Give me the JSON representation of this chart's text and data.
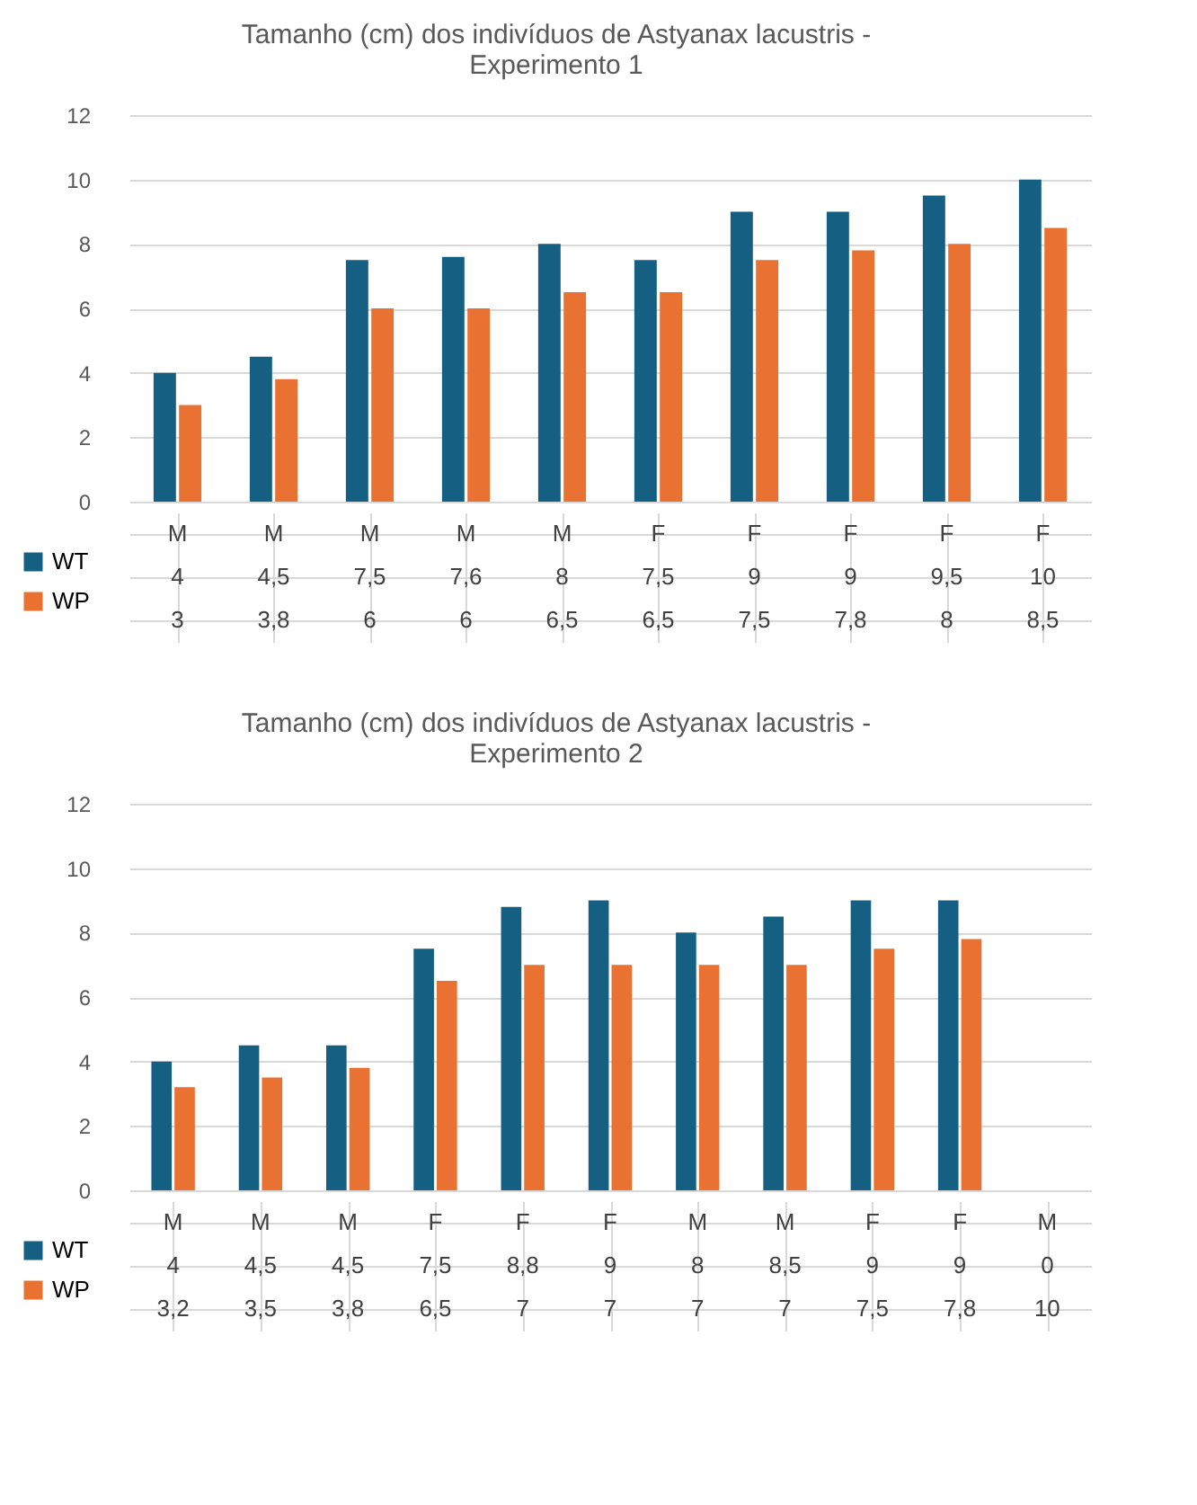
{
  "chart_data": [
    {
      "type": "bar",
      "title": "Tamanho (cm) dos indivíduos de Astyanax lacustris -\nExperimento 1",
      "categories": [
        "M",
        "M",
        "M",
        "M",
        "M",
        "F",
        "F",
        "F",
        "F",
        "F"
      ],
      "series": [
        {
          "name": "WT",
          "color": "#156082",
          "values": [
            4,
            4.5,
            7.5,
            7.6,
            8,
            7.5,
            9,
            9,
            9.5,
            10
          ],
          "value_labels": [
            "4",
            "4,5",
            "7,5",
            "7,6",
            "8",
            "7,5",
            "9",
            "9",
            "9,5",
            "10"
          ]
        },
        {
          "name": "WP",
          "color": "#e97132",
          "values": [
            3,
            3.8,
            6,
            6,
            6.5,
            6.5,
            7.5,
            7.8,
            8,
            8.5
          ],
          "value_labels": [
            "3",
            "3,8",
            "6",
            "6",
            "6,5",
            "6,5",
            "7,5",
            "7,8",
            "8",
            "8,5"
          ]
        }
      ],
      "ylim": [
        0,
        12
      ],
      "yticks": [
        0,
        2,
        4,
        6,
        8,
        10,
        12
      ],
      "grid": "y",
      "legend": "bottom left"
    },
    {
      "type": "bar",
      "title": "Tamanho (cm) dos indivíduos de Astyanax lacustris -\nExperimento 2",
      "categories": [
        "M",
        "M",
        "M",
        "F",
        "F",
        "F",
        "M",
        "M",
        "F",
        "F",
        "M"
      ],
      "series": [
        {
          "name": "WT",
          "color": "#156082",
          "values": [
            4,
            4.5,
            4.5,
            7.5,
            8.8,
            9,
            8,
            8.5,
            9,
            9,
            0
          ],
          "value_labels": [
            "4",
            "4,5",
            "4,5",
            "7,5",
            "8,8",
            "9",
            "8",
            "8,5",
            "9",
            "9",
            "0"
          ]
        },
        {
          "name": "WP",
          "color": "#e97132",
          "values": [
            3.2,
            3.5,
            3.8,
            6.5,
            7,
            7,
            7,
            7,
            7.5,
            7.8,
            null
          ],
          "value_labels": [
            "3,2",
            "3,5",
            "3,8",
            "6,5",
            "7",
            "7",
            "7",
            "7",
            "7,5",
            "7,8",
            "10"
          ]
        }
      ],
      "ylim": [
        0,
        12
      ],
      "yticks": [
        0,
        2,
        4,
        6,
        8,
        10,
        12
      ],
      "grid": "y",
      "legend": "bottom left"
    }
  ]
}
